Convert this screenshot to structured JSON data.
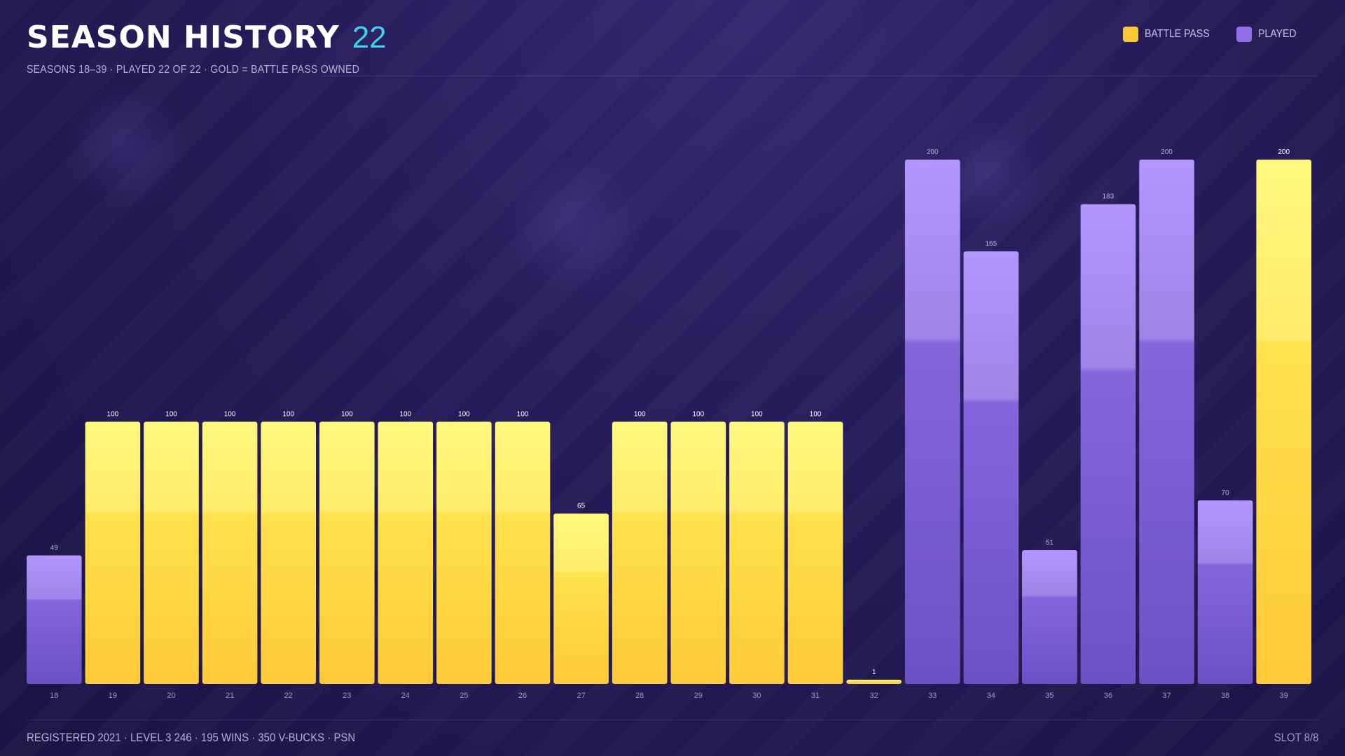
{
  "header": {
    "title": "SEASON HISTORY",
    "count": "22",
    "subtitle": "SEASONS 18–39 · PLAYED 22 OF 22 · GOLD = BATTLE PASS OWNED"
  },
  "legend": [
    {
      "label": "BATTLE PASS",
      "color": "#f9c93a"
    },
    {
      "label": "PLAYED",
      "color": "#8e6fe6"
    }
  ],
  "footer": {
    "left": "REGISTERED 2021 · LEVEL 3 246 · 195 WINS · 350 V-BUCKS · PSN",
    "right": "SLOT 8/8"
  },
  "chart_data": {
    "type": "bar",
    "title": "SEASON HISTORY",
    "ylim": [
      0,
      200
    ],
    "grid": false,
    "legend_placement": "top-right",
    "series_colors": {
      "battle_pass": "#f9c93a",
      "played": "#8e6fe6"
    },
    "categories": [
      "18",
      "19",
      "20",
      "21",
      "22",
      "23",
      "24",
      "25",
      "26",
      "27",
      "28",
      "29",
      "30",
      "31",
      "32",
      "33",
      "34",
      "35",
      "36",
      "37",
      "38",
      "39"
    ],
    "values": [
      49,
      100,
      100,
      100,
      100,
      100,
      100,
      100,
      100,
      65,
      100,
      100,
      100,
      100,
      1,
      200,
      165,
      51,
      183,
      200,
      70,
      200
    ],
    "value_labels": [
      "49",
      "100",
      "100",
      "100",
      "100",
      "100",
      "100",
      "100",
      "100",
      "65",
      "100",
      "100",
      "100",
      "100",
      "1",
      "200",
      "165",
      "51",
      "183",
      "200",
      "70",
      "200"
    ],
    "battle_pass": [
      false,
      true,
      true,
      true,
      true,
      true,
      true,
      true,
      true,
      true,
      true,
      true,
      true,
      true,
      true,
      false,
      false,
      false,
      false,
      false,
      false,
      true
    ]
  }
}
